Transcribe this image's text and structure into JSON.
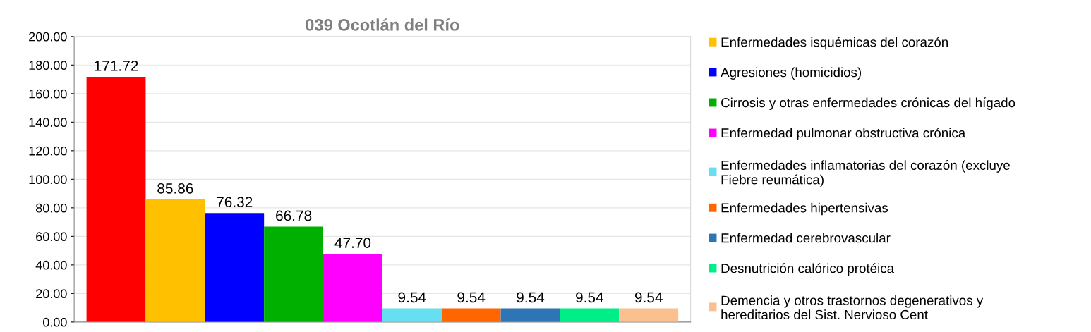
{
  "chart_data": {
    "type": "bar",
    "title": "039 Ocotlán del Río",
    "categories": [
      null
    ],
    "series": [
      {
        "color": "#ff0000",
        "values": [
          171.72
        ],
        "value_labels": [
          "171.72"
        ]
      },
      {
        "name": "Enfermedades isquémicas del corazón",
        "color": "#ffc000",
        "values": [
          85.86
        ],
        "value_labels": [
          "85.86"
        ]
      },
      {
        "name": "Agresiones (homicidios)",
        "color": "#0000ff",
        "values": [
          76.32
        ],
        "value_labels": [
          "76.32"
        ]
      },
      {
        "name": "Cirrosis y otras enfermedades crónicas del hígado",
        "color": "#00b000",
        "values": [
          66.78
        ],
        "value_labels": [
          "66.78"
        ]
      },
      {
        "name": "Enfermedad pulmonar obstructiva crónica",
        "color": "#ff00ff",
        "values": [
          47.7
        ],
        "value_labels": [
          "47.70"
        ]
      },
      {
        "name": "Enfermedades inflamatorias del corazón (excluye Fiebre reumática)",
        "color": "#66e0f0",
        "values": [
          9.54
        ],
        "value_labels": [
          "9.54"
        ]
      },
      {
        "name": "Enfermedades hipertensivas",
        "color": "#ff6600",
        "values": [
          9.54
        ],
        "value_labels": [
          "9.54"
        ]
      },
      {
        "name": "Enfermedad cerebrovascular",
        "color": "#2e75b6",
        "values": [
          9.54
        ],
        "value_labels": [
          "9.54"
        ]
      },
      {
        "name": "Desnutrición calórico protéica",
        "color": "#00ee88",
        "values": [
          9.54
        ],
        "value_labels": [
          "9.54"
        ]
      },
      {
        "name": "Demencia y otros trastornos degenerativos y hereditarios del Sist. Nervioso Cent",
        "color": "#fac090",
        "values": [
          9.54
        ],
        "value_labels": [
          "9.54"
        ]
      }
    ],
    "ylim": [
      0,
      200
    ],
    "yticks": [
      {
        "value": 0,
        "label": "0.00"
      },
      {
        "value": 20,
        "label": "20.00"
      },
      {
        "value": 40,
        "label": "40.00"
      },
      {
        "value": 60,
        "label": "60.00"
      },
      {
        "value": 80,
        "label": "80.00"
      },
      {
        "value": 100,
        "label": "100.00"
      },
      {
        "value": 120,
        "label": "120.00"
      },
      {
        "value": 140,
        "label": "140.00"
      },
      {
        "value": 160,
        "label": "160.00"
      },
      {
        "value": 180,
        "label": "180.00"
      },
      {
        "value": 200,
        "label": "200.00"
      }
    ],
    "grid": "y",
    "legend": "right"
  }
}
